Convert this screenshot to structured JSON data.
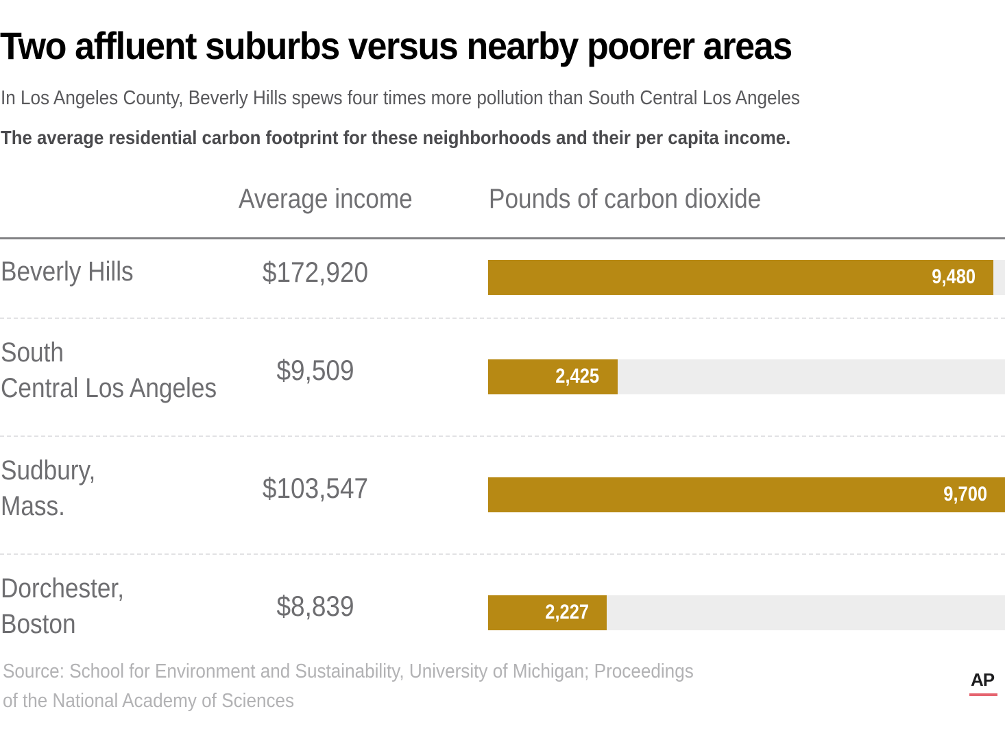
{
  "header": {
    "title": "Two affluent suburbs versus nearby poorer areas",
    "subtitle": "In Los Angeles County, Beverly Hills spews four times more pollution than South Central Los Angeles",
    "intro": "The average residential carbon footprint for these neighborhoods and their per capita income."
  },
  "columns": {
    "income": "Average income",
    "co2": "Pounds of carbon dioxide"
  },
  "colors": {
    "bar": "#b78914",
    "track": "#ededed",
    "ap_accent": "#e5646f"
  },
  "rows": [
    {
      "label_lines": [
        "Beverly Hills"
      ],
      "income": "$172,920",
      "co2_label": "9,480"
    },
    {
      "label_lines": [
        "South",
        "Central Los Angeles"
      ],
      "income": "$9,509",
      "co2_label": "2,425"
    },
    {
      "label_lines": [
        "Sudbury,",
        "Mass."
      ],
      "income": "$103,547",
      "co2_label": "9,700"
    },
    {
      "label_lines": [
        "Dorchester,",
        "Boston"
      ],
      "income": "$8,839",
      "co2_label": "2,227"
    }
  ],
  "chart_data": {
    "type": "bar",
    "orientation": "horizontal",
    "title": "Two affluent suburbs versus nearby poorer areas",
    "subtitle": "In Los Angeles County, Beverly Hills spews four times more pollution than South Central Los Angeles",
    "categories": [
      "Beverly Hills",
      "South Central Los Angeles",
      "Sudbury, Mass.",
      "Dorchester, Boston"
    ],
    "series": [
      {
        "name": "Pounds of carbon dioxide",
        "values": [
          9480,
          2425,
          9700,
          2227
        ]
      }
    ],
    "table_columns": [
      {
        "name": "Average income",
        "values": [
          172920,
          9509,
          103547,
          8839
        ]
      }
    ],
    "xlim": [
      0,
      9700
    ],
    "xlabel": "Pounds of carbon dioxide",
    "ylabel": "",
    "grid": false,
    "legend": "none"
  },
  "footer": {
    "source_lines": [
      "Source: School for Environment and Sustainability, University of Michigan; Proceedings",
      "of the National Academy of Sciences"
    ],
    "logo": "AP"
  }
}
